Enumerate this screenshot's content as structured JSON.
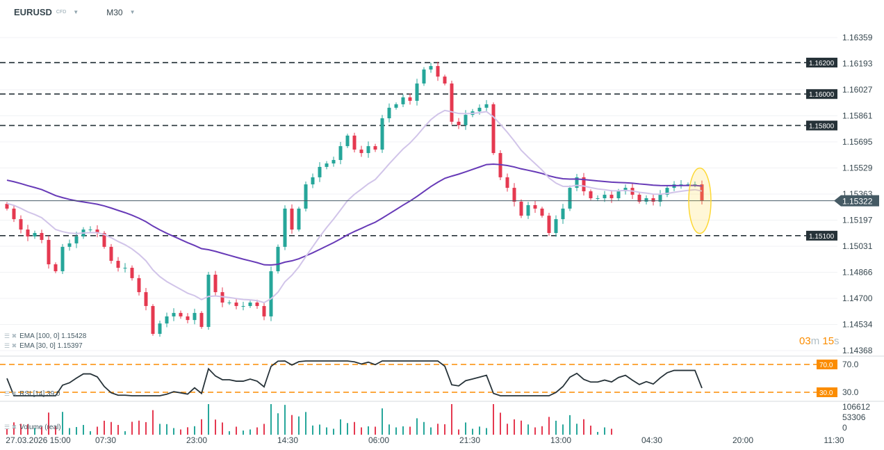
{
  "header": {
    "symbol": "EURUSD",
    "type": "CFD",
    "timeframe": "M30"
  },
  "timer": {
    "min": "03",
    "min_unit": "m",
    "sec": "15",
    "sec_unit": "s"
  },
  "legends": {
    "ema100": "EMA [100, 0] 1.15428",
    "ema30": "EMA [30, 0] 1.15397",
    "rsi": "RSI [14] 39.0",
    "volume": "Volume (real)"
  },
  "colors": {
    "up": "#26a69a",
    "down": "#e53950",
    "ema100": "#673ab7",
    "ema30": "#d1c4e9",
    "level": "#263238",
    "rsi_level": "#fb8c00",
    "highlight": "#fdd835"
  },
  "chart_data": {
    "type": "candlestick",
    "price_ticks": [
      "1.16359",
      "1.16193",
      "1.16027",
      "1.15861",
      "1.15695",
      "1.15529",
      "1.15363",
      "1.15197",
      "1.15031",
      "1.14866",
      "1.14700",
      "1.14534",
      "1.14368"
    ],
    "ylim": [
      1.14368,
      1.16359
    ],
    "levels": [
      {
        "value": 1.162,
        "label": "1.16200"
      },
      {
        "value": 1.16,
        "label": "1.16000"
      },
      {
        "value": 1.158,
        "label": "1.15800"
      },
      {
        "value": 1.151,
        "label": "1.15100"
      }
    ],
    "current_price": {
      "value": 1.15322,
      "label": "1.15322"
    },
    "time_labels": [
      "27.03.2026 15:00",
      "07:30",
      "23:00",
      "14:30",
      "06:00",
      "21:30",
      "13:00",
      "04:30",
      "20:00",
      "11:30"
    ],
    "closes": [
      1.15272,
      1.15205,
      1.15139,
      1.15095,
      1.15117,
      1.15073,
      1.14918,
      1.14874,
      1.15029,
      1.15051,
      1.15095,
      1.15139,
      1.15139,
      1.15117,
      1.15029,
      1.1494,
      1.14896,
      1.14896,
      1.1483,
      1.14741,
      1.14653,
      1.14476,
      1.14542,
      1.14587,
      1.14609,
      1.14587,
      1.14564,
      1.14609,
      1.1452,
      1.14852,
      1.14741,
      1.14675,
      1.14675,
      1.14653,
      1.14653,
      1.14675,
      1.14653,
      1.14587,
      1.14874,
      1.15029,
      1.15272,
      1.15139,
      1.15272,
      1.15426,
      1.15471,
      1.15537,
      1.15559,
      1.15581,
      1.15669,
      1.15736,
      1.15647,
      1.15625,
      1.15669,
      1.15647,
      1.15846,
      1.15913,
      1.15935,
      1.15979,
      1.15957,
      1.16067,
      1.16156,
      1.16178,
      1.16111,
      1.16067,
      1.15824,
      1.15802,
      1.15868,
      1.1589,
      1.15913,
      1.15935,
      1.15625,
      1.15471,
      1.15404,
      1.15316,
      1.15227,
      1.15294,
      1.15272,
      1.15227,
      1.15117,
      1.15205,
      1.15272,
      1.15404,
      1.15471,
      1.15382,
      1.15338,
      1.15338,
      1.1536,
      1.15338,
      1.15382,
      1.15404,
      1.1536,
      1.15316,
      1.15338,
      1.15316,
      1.1536,
      1.15404,
      1.15426,
      1.15426,
      1.15426,
      1.15426,
      1.15322
    ],
    "rsi": {
      "levels": [
        {
          "value": 70,
          "label": "70.0"
        },
        {
          "value": 30,
          "label": "30.0"
        }
      ],
      "ticks": [
        "70.0",
        "30.0"
      ]
    },
    "volume": {
      "ticks": [
        "106612",
        "53306",
        "0"
      ]
    }
  }
}
